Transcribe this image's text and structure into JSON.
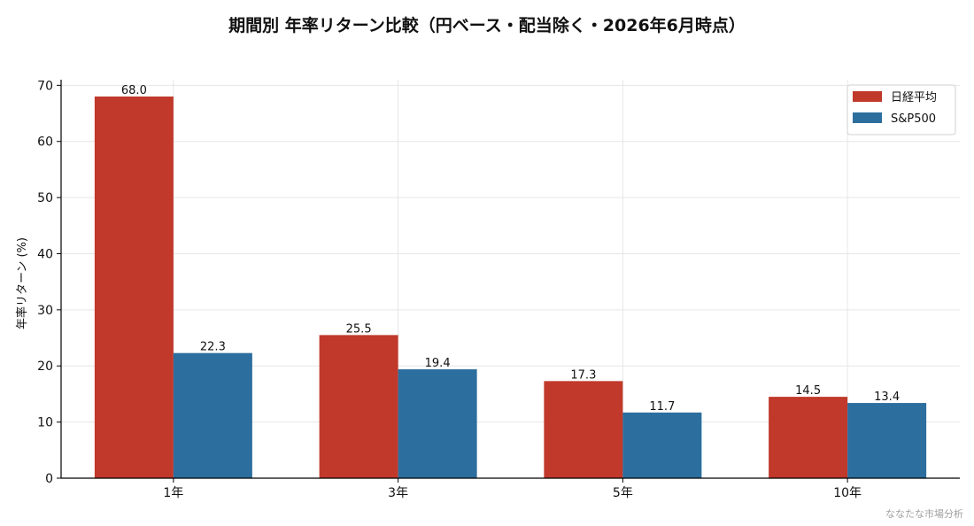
{
  "page": {
    "title": "期間別 年率リターン比較（円ベース・配当除く・2026年6月時点）",
    "credit": "ななたな市場分析"
  },
  "colors": {
    "nikkei": "#c0392b",
    "sp500": "#2c6e9e",
    "grid": "#e6e6e6",
    "axis": "#000000"
  },
  "chart_data": {
    "type": "bar",
    "title": "期間別 年率リターン比較（円ベース・配当除く・2026年6月時点）",
    "categories": [
      "1年",
      "3年",
      "5年",
      "10年"
    ],
    "series": [
      {
        "name": "日経平均",
        "values": [
          68.0,
          25.5,
          17.3,
          14.5
        ]
      },
      {
        "name": "S&P500",
        "values": [
          22.3,
          19.4,
          11.7,
          13.4
        ]
      }
    ],
    "xlabel": "",
    "ylabel": "年率リターン (%)",
    "ylim": [
      0,
      71
    ],
    "yticks": [
      0,
      10,
      20,
      30,
      40,
      50,
      60,
      70
    ],
    "grid": true,
    "legend": "top-right",
    "data_labels": true
  }
}
